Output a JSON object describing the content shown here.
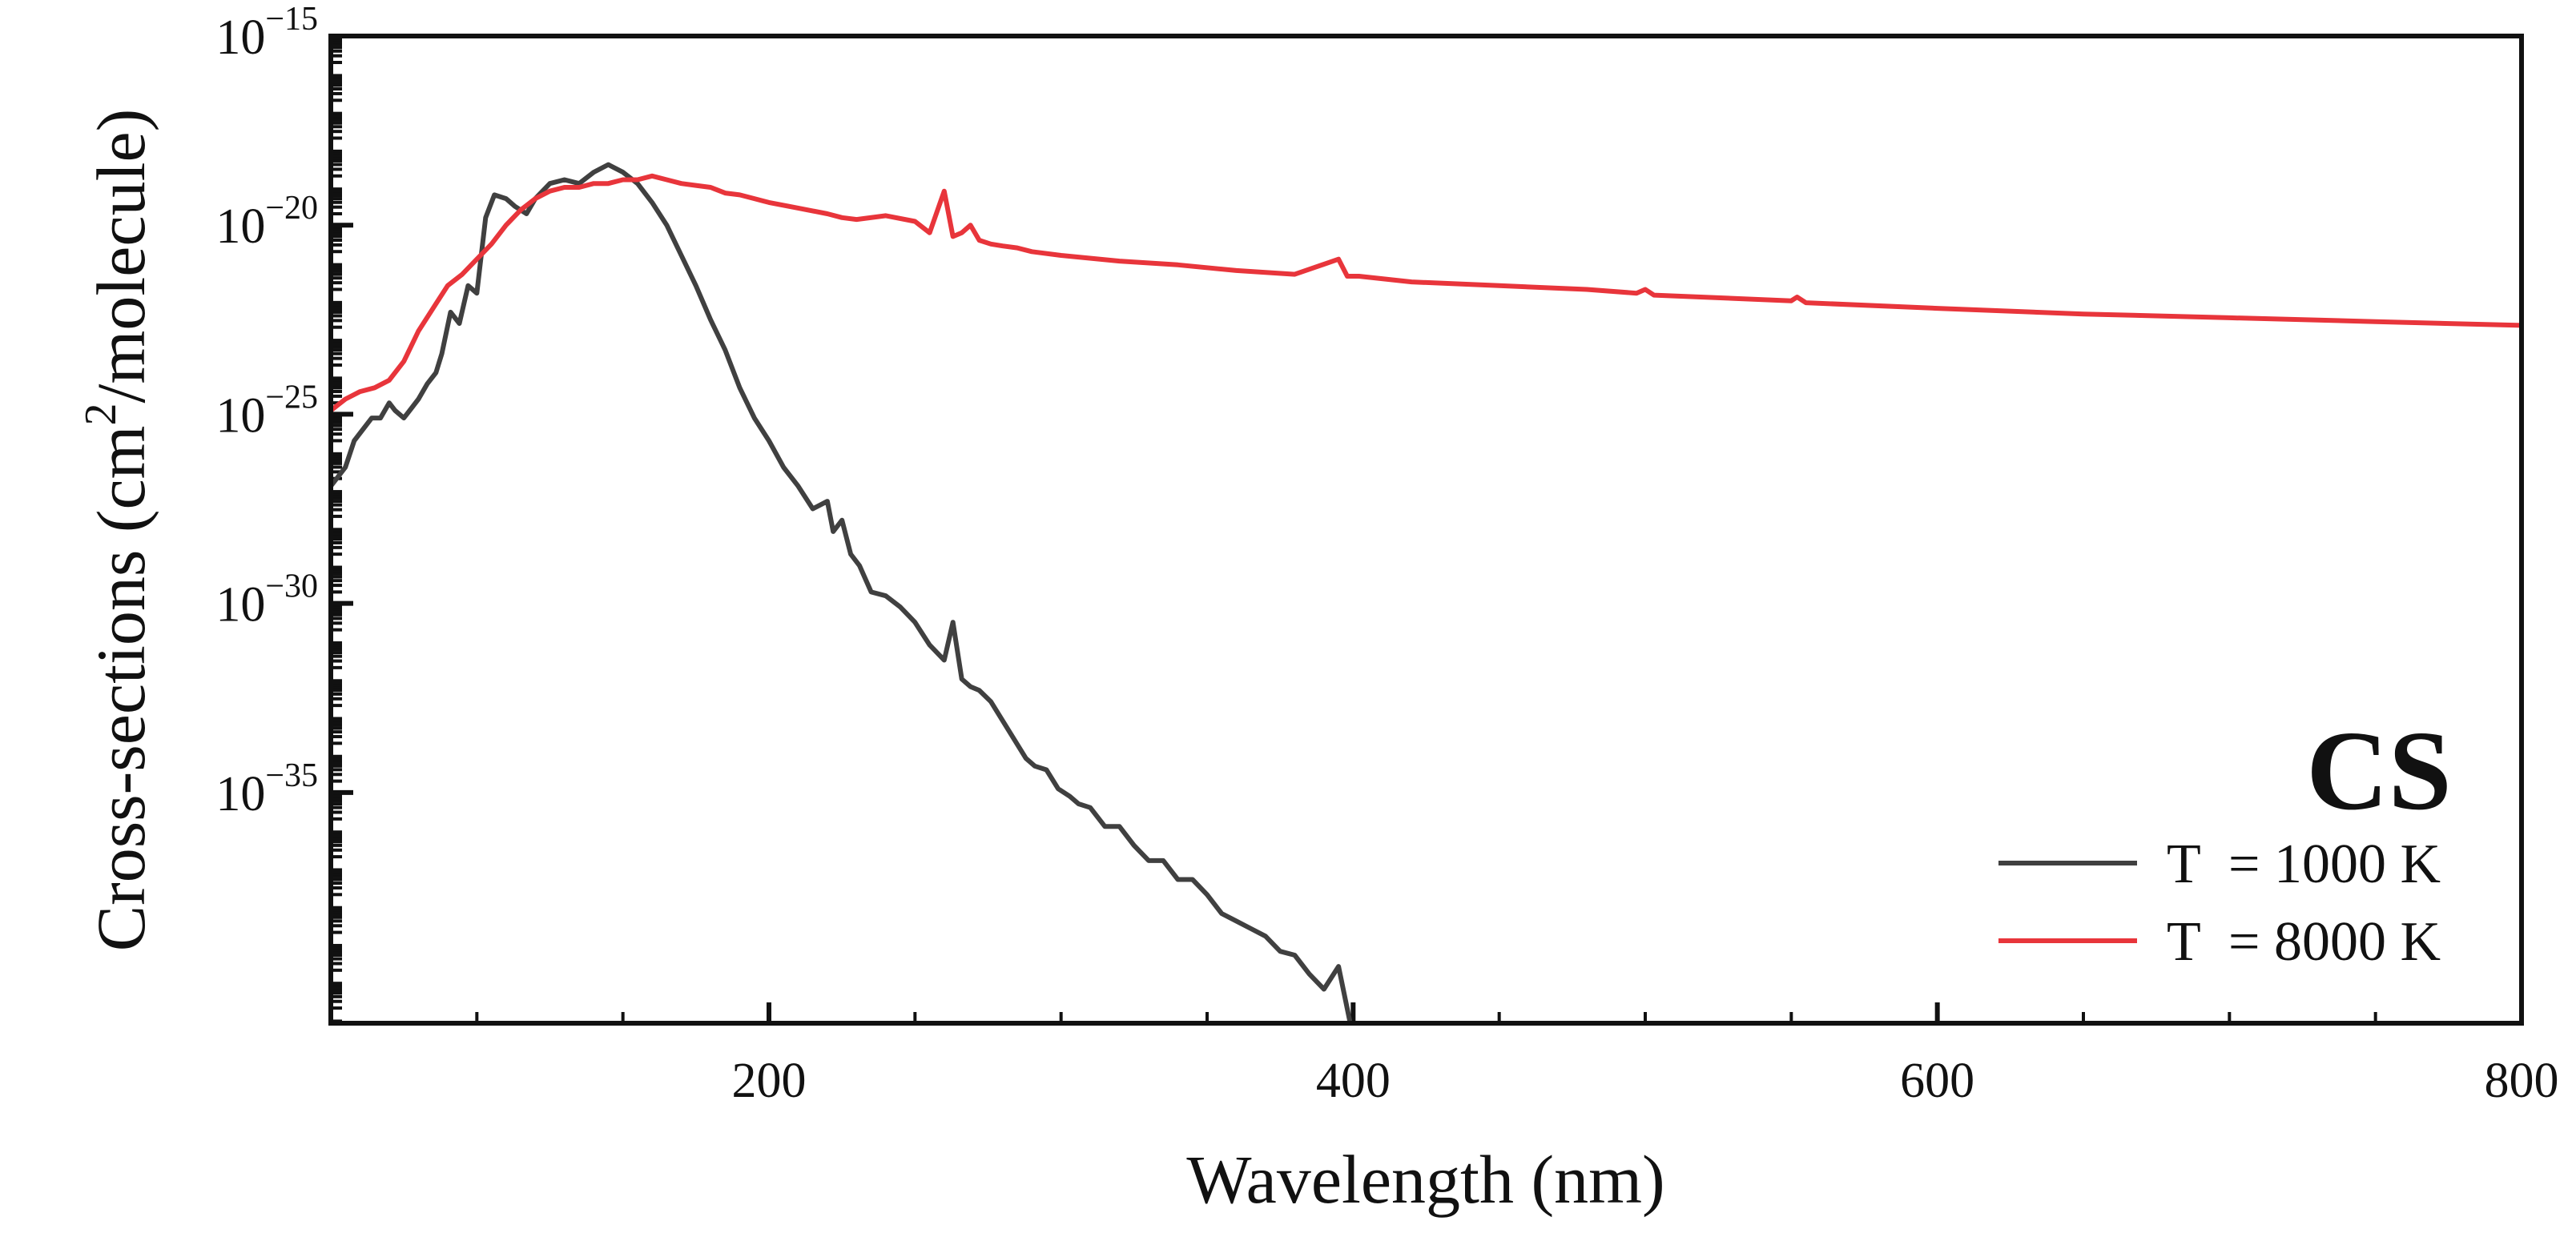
{
  "chart_data": {
    "type": "line",
    "title": "CS",
    "xlabel": "Wavelength (nm)",
    "ylabel": "Cross-sections (cm²/molecule)",
    "ylabel_parts": {
      "before": "Cross-sections (cm",
      "sup": "2",
      "after": "/molecule)"
    },
    "xlim": [
      50,
      800
    ],
    "ylim_log10": [
      -41.1,
      -15
    ],
    "y_scale": "log",
    "x_ticks": [
      200,
      400,
      600,
      800
    ],
    "x_tick_labels": [
      "200",
      "400",
      "600",
      "800"
    ],
    "y_ticks": [
      {
        "exp": -15,
        "base": "10",
        "sup": "−15"
      },
      {
        "exp": -20,
        "base": "10",
        "sup": "−20"
      },
      {
        "exp": -25,
        "base": "10",
        "sup": "−25"
      },
      {
        "exp": -30,
        "base": "10",
        "sup": "−30"
      },
      {
        "exp": -35,
        "base": "10",
        "sup": "−35"
      }
    ],
    "legend_position": "bottom-right",
    "series": [
      {
        "name": "T = 1000 K",
        "legend_name": "T",
        "legend_value": "= 1000 K",
        "color": "#404040",
        "x": [
          50,
          55,
          58,
          60,
          64,
          67,
          70,
          72,
          75,
          78,
          80,
          83,
          86,
          88,
          91,
          94,
          97,
          100,
          103,
          106,
          110,
          113,
          117,
          120,
          125,
          130,
          135,
          140,
          145,
          150,
          155,
          160,
          165,
          170,
          175,
          180,
          185,
          190,
          195,
          200,
          205,
          210,
          215,
          220,
          222,
          225,
          228,
          231,
          235,
          240,
          245,
          250,
          255,
          260,
          263,
          266,
          269,
          272,
          276,
          280,
          284,
          288,
          291,
          295,
          299,
          303,
          306,
          310,
          315,
          320,
          325,
          330,
          335,
          340,
          345,
          350,
          355,
          360,
          365,
          370,
          375,
          380,
          385,
          390,
          395,
          399
        ],
        "y": [
          -26.9,
          -26.4,
          -25.7,
          -25.5,
          -25.1,
          -25.1,
          -24.7,
          -24.9,
          -25.1,
          -24.8,
          -24.6,
          -24.2,
          -23.9,
          -23.4,
          -22.3,
          -22.6,
          -21.6,
          -21.8,
          -19.8,
          -19.2,
          -19.3,
          -19.5,
          -19.7,
          -19.3,
          -18.9,
          -18.8,
          -18.9,
          -18.6,
          -18.4,
          -18.6,
          -18.9,
          -19.4,
          -20.0,
          -20.8,
          -21.6,
          -22.5,
          -23.3,
          -24.3,
          -25.1,
          -25.7,
          -26.4,
          -26.9,
          -27.5,
          -27.3,
          -28.1,
          -27.8,
          -28.7,
          -29.0,
          -29.7,
          -29.8,
          -30.1,
          -30.5,
          -31.1,
          -31.5,
          -30.5,
          -32.0,
          -32.2,
          -32.3,
          -32.6,
          -33.1,
          -33.6,
          -34.1,
          -34.3,
          -34.4,
          -34.9,
          -35.1,
          -35.3,
          -35.4,
          -35.9,
          -35.9,
          -36.4,
          -36.8,
          -36.8,
          -37.3,
          -37.3,
          -37.7,
          -38.2,
          -38.4,
          -38.6,
          -38.8,
          -39.2,
          -39.3,
          -39.8,
          -40.2,
          -39.6,
          -41.1
        ]
      },
      {
        "name": "T = 8000 K",
        "legend_name": "T",
        "legend_value": "= 8000 K",
        "color": "#e8353b",
        "x": [
          50,
          55,
          60,
          65,
          70,
          75,
          80,
          85,
          90,
          95,
          100,
          105,
          110,
          115,
          120,
          125,
          130,
          135,
          140,
          145,
          150,
          155,
          160,
          165,
          170,
          175,
          180,
          185,
          190,
          195,
          200,
          210,
          220,
          225,
          230,
          240,
          250,
          255,
          260,
          263,
          266,
          269,
          272,
          276,
          280,
          285,
          290,
          300,
          320,
          340,
          360,
          380,
          395,
          398,
          402,
          420,
          450,
          480,
          497,
          500,
          503,
          550,
          552,
          555,
          600,
          650,
          700,
          750,
          800
        ],
        "y": [
          -24.9,
          -24.6,
          -24.4,
          -24.3,
          -24.1,
          -23.6,
          -22.8,
          -22.2,
          -21.6,
          -21.3,
          -20.9,
          -20.5,
          -20.0,
          -19.6,
          -19.3,
          -19.1,
          -19.0,
          -19.0,
          -18.9,
          -18.9,
          -18.8,
          -18.8,
          -18.7,
          -18.8,
          -18.9,
          -18.95,
          -19.0,
          -19.15,
          -19.2,
          -19.3,
          -19.4,
          -19.55,
          -19.7,
          -19.8,
          -19.85,
          -19.75,
          -19.9,
          -20.2,
          -19.1,
          -20.3,
          -20.2,
          -20.0,
          -20.4,
          -20.5,
          -20.55,
          -20.6,
          -20.7,
          -20.8,
          -20.95,
          -21.05,
          -21.2,
          -21.3,
          -20.9,
          -21.35,
          -21.35,
          -21.5,
          -21.6,
          -21.7,
          -21.8,
          -21.7,
          -21.85,
          -22.0,
          -21.9,
          -22.05,
          -22.2,
          -22.35,
          -22.45,
          -22.55,
          -22.65
        ]
      }
    ]
  }
}
